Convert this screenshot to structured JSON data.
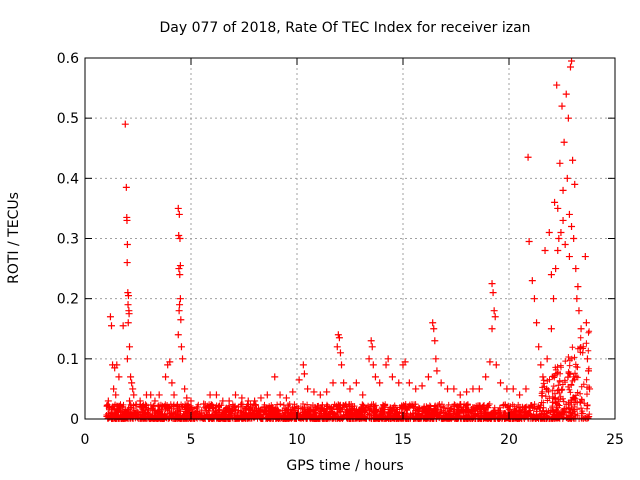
{
  "chart_data": {
    "type": "scatter",
    "title": "Day 077 of 2018, Rate Of TEC Index for receiver izan",
    "xlabel": "GPS time / hours",
    "ylabel": "ROTI / TECUs",
    "xlim": [
      0,
      25
    ],
    "ylim": [
      0,
      0.6
    ],
    "xticks": [
      0,
      5,
      10,
      15,
      20,
      25
    ],
    "xtick_labels": [
      "0",
      "5",
      "10",
      "15",
      "20",
      "25"
    ],
    "yticks": [
      0,
      0.1,
      0.2,
      0.3,
      0.4,
      0.5,
      0.6
    ],
    "ytick_labels": [
      "0",
      "0.1",
      "0.2",
      "0.3",
      "0.4",
      "0.5",
      "0.6"
    ],
    "grid": true,
    "marker": "+",
    "color": "#ff0000",
    "series": [
      {
        "name": "ROTI",
        "points": [
          [
            1.2,
            0.17
          ],
          [
            1.25,
            0.155
          ],
          [
            1.3,
            0.09
          ],
          [
            1.4,
            0.085
          ],
          [
            1.5,
            0.09
          ],
          [
            1.6,
            0.07
          ],
          [
            1.1,
            0.03
          ],
          [
            1.15,
            0.02
          ],
          [
            1.35,
            0.05
          ],
          [
            1.45,
            0.04
          ],
          [
            1.9,
            0.49
          ],
          [
            1.95,
            0.385
          ],
          [
            1.97,
            0.335
          ],
          [
            1.98,
            0.33
          ],
          [
            2.0,
            0.29
          ],
          [
            1.99,
            0.26
          ],
          [
            2.02,
            0.21
          ],
          [
            2.05,
            0.205
          ],
          [
            2.03,
            0.19
          ],
          [
            2.07,
            0.18
          ],
          [
            2.08,
            0.175
          ],
          [
            2.04,
            0.16
          ],
          [
            1.8,
            0.155
          ],
          [
            2.1,
            0.12
          ],
          [
            2.0,
            0.1
          ],
          [
            2.15,
            0.07
          ],
          [
            2.2,
            0.06
          ],
          [
            2.25,
            0.05
          ],
          [
            2.3,
            0.04
          ],
          [
            2.1,
            0.03
          ],
          [
            2.6,
            0.03
          ],
          [
            2.9,
            0.04
          ],
          [
            3.1,
            0.04
          ],
          [
            3.3,
            0.03
          ],
          [
            3.5,
            0.04
          ],
          [
            3.8,
            0.07
          ],
          [
            3.9,
            0.09
          ],
          [
            4.0,
            0.095
          ],
          [
            4.1,
            0.06
          ],
          [
            4.2,
            0.04
          ],
          [
            4.4,
            0.35
          ],
          [
            4.45,
            0.34
          ],
          [
            4.42,
            0.305
          ],
          [
            4.48,
            0.3
          ],
          [
            4.5,
            0.255
          ],
          [
            4.43,
            0.25
          ],
          [
            4.47,
            0.24
          ],
          [
            4.5,
            0.2
          ],
          [
            4.46,
            0.19
          ],
          [
            4.44,
            0.18
          ],
          [
            4.52,
            0.165
          ],
          [
            4.4,
            0.14
          ],
          [
            4.55,
            0.12
          ],
          [
            4.6,
            0.1
          ],
          [
            4.7,
            0.05
          ],
          [
            4.8,
            0.035
          ],
          [
            5.0,
            0.03
          ],
          [
            5.3,
            0.02
          ],
          [
            5.6,
            0.025
          ],
          [
            5.9,
            0.04
          ],
          [
            6.2,
            0.04
          ],
          [
            6.5,
            0.03
          ],
          [
            6.8,
            0.03
          ],
          [
            7.1,
            0.04
          ],
          [
            7.4,
            0.035
          ],
          [
            7.7,
            0.03
          ],
          [
            8.0,
            0.03
          ],
          [
            8.3,
            0.035
          ],
          [
            8.6,
            0.04
          ],
          [
            8.95,
            0.07
          ],
          [
            9.2,
            0.04
          ],
          [
            9.5,
            0.035
          ],
          [
            9.8,
            0.045
          ],
          [
            10.1,
            0.065
          ],
          [
            10.3,
            0.09
          ],
          [
            10.35,
            0.075
          ],
          [
            10.5,
            0.05
          ],
          [
            10.8,
            0.045
          ],
          [
            11.1,
            0.04
          ],
          [
            11.4,
            0.045
          ],
          [
            11.7,
            0.06
          ],
          [
            11.9,
            0.12
          ],
          [
            11.95,
            0.14
          ],
          [
            12.0,
            0.135
          ],
          [
            12.05,
            0.11
          ],
          [
            12.1,
            0.09
          ],
          [
            12.2,
            0.06
          ],
          [
            12.5,
            0.05
          ],
          [
            12.8,
            0.06
          ],
          [
            13.1,
            0.04
          ],
          [
            13.4,
            0.1
          ],
          [
            13.5,
            0.13
          ],
          [
            13.55,
            0.12
          ],
          [
            13.6,
            0.09
          ],
          [
            13.7,
            0.07
          ],
          [
            13.9,
            0.06
          ],
          [
            14.2,
            0.09
          ],
          [
            14.3,
            0.1
          ],
          [
            14.5,
            0.07
          ],
          [
            14.8,
            0.06
          ],
          [
            15.0,
            0.09
          ],
          [
            15.1,
            0.095
          ],
          [
            15.3,
            0.06
          ],
          [
            15.6,
            0.05
          ],
          [
            15.9,
            0.055
          ],
          [
            16.2,
            0.07
          ],
          [
            16.4,
            0.16
          ],
          [
            16.45,
            0.15
          ],
          [
            16.5,
            0.13
          ],
          [
            16.55,
            0.1
          ],
          [
            16.6,
            0.08
          ],
          [
            16.8,
            0.06
          ],
          [
            17.1,
            0.05
          ],
          [
            17.4,
            0.05
          ],
          [
            17.7,
            0.04
          ],
          [
            18.0,
            0.045
          ],
          [
            18.3,
            0.05
          ],
          [
            18.6,
            0.05
          ],
          [
            18.9,
            0.07
          ],
          [
            19.1,
            0.095
          ],
          [
            19.2,
            0.225
          ],
          [
            19.25,
            0.21
          ],
          [
            19.3,
            0.18
          ],
          [
            19.35,
            0.17
          ],
          [
            19.2,
            0.15
          ],
          [
            19.4,
            0.09
          ],
          [
            19.6,
            0.06
          ],
          [
            19.9,
            0.05
          ],
          [
            20.2,
            0.05
          ],
          [
            20.5,
            0.04
          ],
          [
            20.8,
            0.05
          ],
          [
            20.9,
            0.435
          ],
          [
            20.95,
            0.295
          ],
          [
            21.1,
            0.23
          ],
          [
            21.2,
            0.2
          ],
          [
            21.3,
            0.16
          ],
          [
            21.4,
            0.12
          ],
          [
            21.5,
            0.09
          ],
          [
            21.6,
            0.07
          ],
          [
            21.8,
            0.1
          ],
          [
            22.0,
            0.15
          ],
          [
            22.1,
            0.2
          ],
          [
            22.2,
            0.25
          ],
          [
            22.25,
            0.555
          ],
          [
            22.3,
            0.35
          ],
          [
            22.35,
            0.3
          ],
          [
            22.4,
            0.425
          ],
          [
            22.5,
            0.52
          ],
          [
            22.55,
            0.38
          ],
          [
            22.6,
            0.46
          ],
          [
            22.7,
            0.54
          ],
          [
            22.75,
            0.4
          ],
          [
            22.8,
            0.5
          ],
          [
            22.85,
            0.34
          ],
          [
            22.9,
            0.585
          ],
          [
            22.95,
            0.595
          ],
          [
            23.0,
            0.43
          ],
          [
            23.05,
            0.3
          ],
          [
            23.1,
            0.39
          ],
          [
            23.15,
            0.25
          ],
          [
            23.2,
            0.2
          ],
          [
            23.3,
            0.18
          ],
          [
            23.4,
            0.15
          ],
          [
            23.5,
            0.12
          ],
          [
            23.6,
            0.27
          ],
          [
            23.65,
            0.16
          ],
          [
            23.7,
            0.1
          ],
          [
            23.75,
            0.08
          ],
          [
            23.8,
            0.05
          ],
          [
            22.3,
            0.28
          ],
          [
            22.45,
            0.31
          ],
          [
            22.65,
            0.29
          ],
          [
            22.85,
            0.27
          ],
          [
            21.9,
            0.31
          ],
          [
            22.15,
            0.36
          ],
          [
            22.55,
            0.33
          ],
          [
            23.25,
            0.22
          ],
          [
            21.7,
            0.28
          ],
          [
            22.0,
            0.24
          ],
          [
            22.95,
            0.32
          ]
        ]
      }
    ]
  }
}
